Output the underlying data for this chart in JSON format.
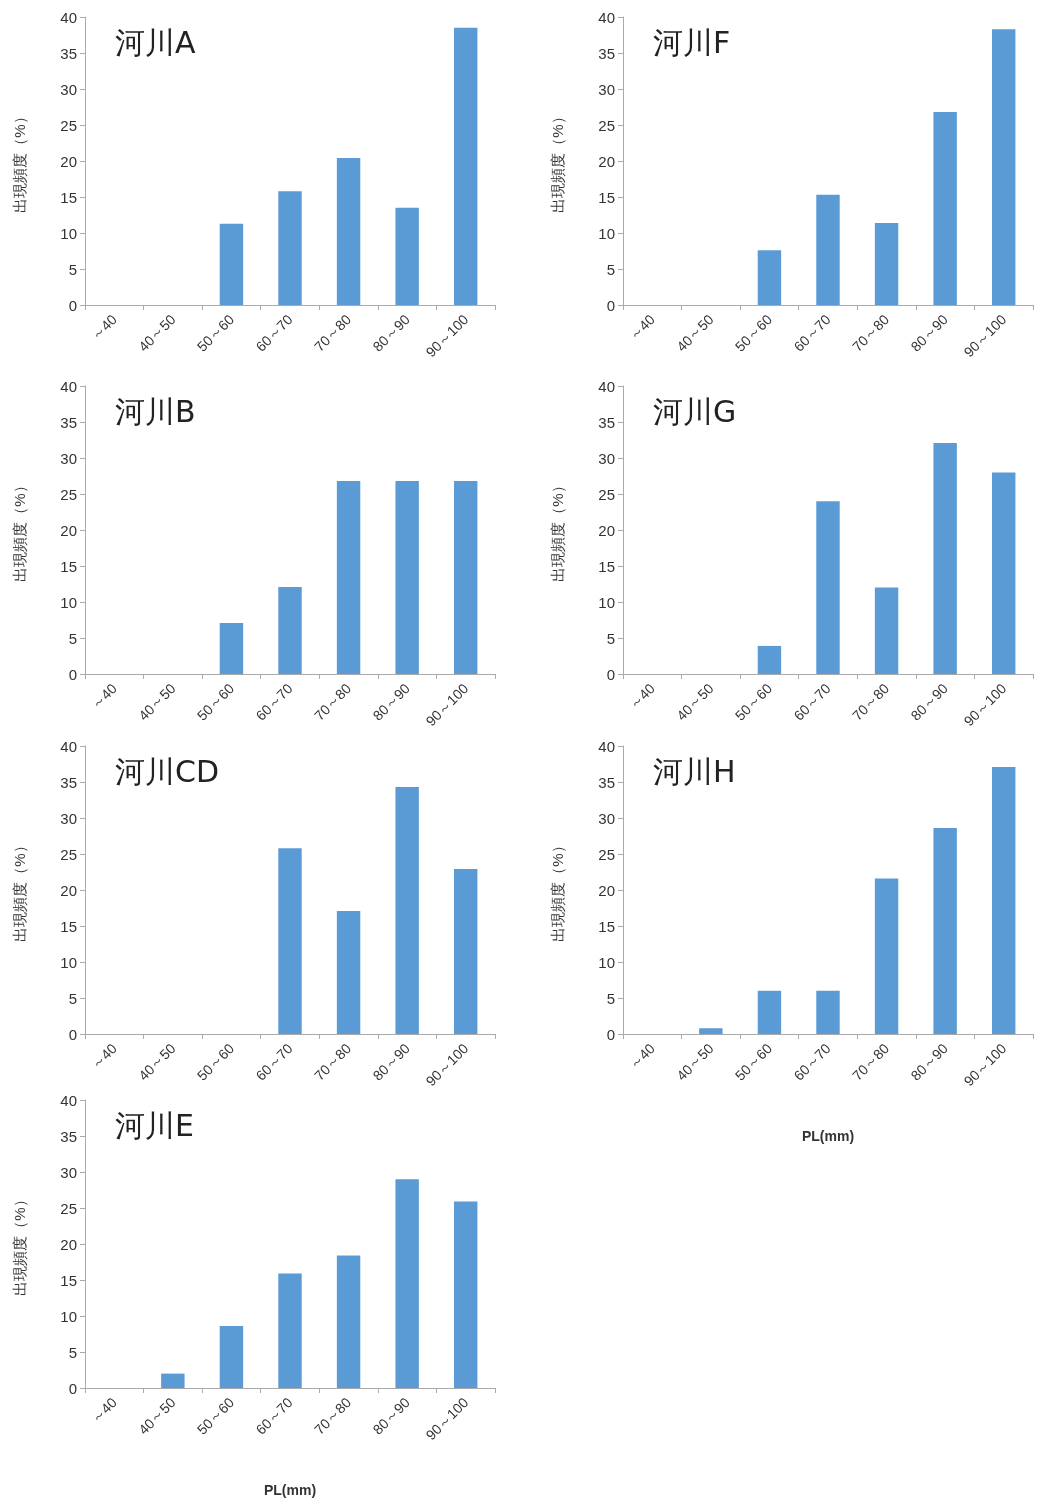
{
  "chart_data": [
    {
      "type": "bar",
      "title": "河川A",
      "ylabel": "出現頻度（%）",
      "categories": [
        "～40",
        "40～50",
        "50～60",
        "60～70",
        "70～80",
        "80～90",
        "90～100"
      ],
      "values": [
        0,
        0,
        11.3,
        15.8,
        20.4,
        13.5,
        38.5
      ],
      "color": "#5b9bd5",
      "ylim": [
        0,
        40
      ],
      "yticks": [
        0,
        5,
        10,
        15,
        20,
        25,
        30,
        35,
        40
      ]
    },
    {
      "type": "bar",
      "title": "河川F",
      "ylabel": "出現頻度（%）",
      "categories": [
        "～40",
        "40～50",
        "50～60",
        "60～70",
        "70～80",
        "80～90",
        "90～100"
      ],
      "values": [
        0,
        0,
        7.6,
        15.3,
        11.4,
        26.8,
        38.3
      ],
      "color": "#5b9bd5",
      "ylim": [
        0,
        40
      ],
      "yticks": [
        0,
        5,
        10,
        15,
        20,
        25,
        30,
        35,
        40
      ]
    },
    {
      "type": "bar",
      "title": "河川B",
      "ylabel": "出現頻度（%）",
      "categories": [
        "～40",
        "40～50",
        "50～60",
        "60～70",
        "70～80",
        "80～90",
        "90～100"
      ],
      "values": [
        0,
        0,
        7.1,
        12.1,
        26.8,
        26.8,
        26.8
      ],
      "color": "#5b9bd5",
      "ylim": [
        0,
        40
      ],
      "yticks": [
        0,
        5,
        10,
        15,
        20,
        25,
        30,
        35,
        40
      ]
    },
    {
      "type": "bar",
      "title": "河川G",
      "ylabel": "出現頻度（%）",
      "categories": [
        "～40",
        "40～50",
        "50～60",
        "60～70",
        "70～80",
        "80～90",
        "90～100"
      ],
      "values": [
        0,
        0,
        3.9,
        24,
        12,
        32.1,
        28
      ],
      "color": "#5b9bd5",
      "ylim": [
        0,
        40
      ],
      "yticks": [
        0,
        5,
        10,
        15,
        20,
        25,
        30,
        35,
        40
      ]
    },
    {
      "type": "bar",
      "title": "河川CD",
      "ylabel": "出現頻度（%）",
      "categories": [
        "～40",
        "40～50",
        "50～60",
        "60～70",
        "70～80",
        "80～90",
        "90～100"
      ],
      "values": [
        0,
        0,
        0,
        25.8,
        17.1,
        34.3,
        22.9
      ],
      "color": "#5b9bd5",
      "ylim": [
        0,
        40
      ],
      "yticks": [
        0,
        5,
        10,
        15,
        20,
        25,
        30,
        35,
        40
      ]
    },
    {
      "type": "bar",
      "title": "河川H",
      "ylabel": "出現頻度（%）",
      "xlabel": "PL(mm)",
      "categories": [
        "～40",
        "40～50",
        "50～60",
        "60～70",
        "70～80",
        "80～90",
        "90～100"
      ],
      "values": [
        0,
        0.8,
        6,
        6,
        21.6,
        28.6,
        37.1
      ],
      "color": "#5b9bd5",
      "ylim": [
        0,
        40
      ],
      "yticks": [
        0,
        5,
        10,
        15,
        20,
        25,
        30,
        35,
        40
      ]
    },
    {
      "type": "bar",
      "title": "河川E",
      "ylabel": "出現頻度（%）",
      "xlabel": "PL(mm)",
      "categories": [
        "～40",
        "40～50",
        "50～60",
        "60～70",
        "70～80",
        "80～90",
        "90～100"
      ],
      "values": [
        0,
        2,
        8.6,
        15.9,
        18.4,
        29,
        25.9
      ],
      "color": "#5b9bd5",
      "ylim": [
        0,
        40
      ],
      "yticks": [
        0,
        5,
        10,
        15,
        20,
        25,
        30,
        35,
        40
      ]
    }
  ]
}
